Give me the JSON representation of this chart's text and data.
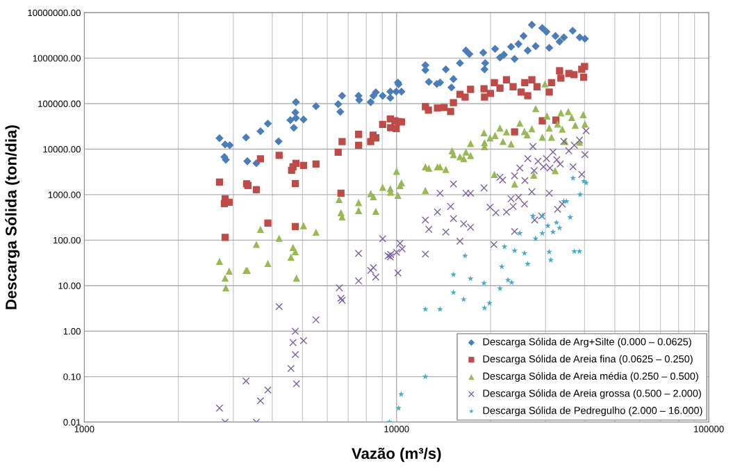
{
  "chart_data": {
    "type": "scatter",
    "xlabel": "Vazão (m³/s)",
    "ylabel": "Descarga Sólida (ton/dia)",
    "log": "xy",
    "xlim": [
      1000,
      100000
    ],
    "xticks": [
      1000,
      10000,
      100000
    ],
    "ylim": [
      0.01,
      10000000
    ],
    "yticks": [
      {
        "value": 0.01,
        "label": "0.01"
      },
      {
        "value": 0.1,
        "label": "0.10"
      },
      {
        "value": 1,
        "label": "1.00"
      },
      {
        "value": 10,
        "label": "10.00"
      },
      {
        "value": 100,
        "label": "100.00"
      },
      {
        "value": 1000,
        "label": "1000.00"
      },
      {
        "value": 10000,
        "label": "10000.00"
      },
      {
        "value": 100000,
        "label": "100000.00"
      },
      {
        "value": 1000000,
        "label": "1000000.00"
      },
      {
        "value": 10000000,
        "label": "10000000.00"
      }
    ],
    "grid": true,
    "legend": "bottom right",
    "series": [
      {
        "name": "Descarga Sólida de Arg+Silte (0.000 – 0.0625)",
        "color": "#4a7ebb",
        "marker": "diamond",
        "x": [
          2710,
          2825,
          2923,
          2810,
          2840,
          3296,
          3327,
          3557,
          3666,
          3872,
          4190,
          4571,
          4690,
          4740,
          4762,
          4762,
          5036,
          5521,
          6503,
          6605,
          6693,
          7558,
          7594,
          8263,
          8432,
          8580,
          9027,
          9550,
          9550,
          9974,
          10100,
          10150,
          10370,
          12370,
          12370,
          12690,
          13460,
          13780,
          14380,
          14990,
          15210,
          15960,
          16680,
          17110,
          18950,
          19130,
          19230,
          20680,
          21440,
          22070,
          23270,
          23880,
          24570,
          25510,
          26310,
          27120,
          27900,
          29290,
          30200,
          30830,
          32280,
          33270,
          34350,
          36650,
          38610,
          40110
        ],
        "values": [
          17380,
          12650,
          12220,
          6710,
          5840,
          17990,
          5430,
          4890,
          24700,
          36400,
          14830,
          43400,
          29500,
          64000,
          108000,
          48200,
          45000,
          87900,
          97700,
          66300,
          149000,
          149000,
          120500,
          108000,
          149000,
          177000,
          149000,
          184000,
          134000,
          184000,
          290000,
          266000,
          184000,
          701000,
          548000,
          301000,
          271000,
          290000,
          567000,
          227000,
          347000,
          778000,
          1470000,
          1230000,
          1320000,
          567000,
          778000,
          1600000,
          1030000,
          1190000,
          1780000,
          962000,
          2040000,
          3070000,
          1470000,
          5400000,
          1830000,
          4590000,
          3800000,
          1690000,
          3070000,
          2320000,
          2860000,
          4000000,
          2860000,
          2670000
        ]
      },
      {
        "name": "Descarga Sólida de Areia fina (0.0625 – 0.250)",
        "color": "#be4b48",
        "marker": "square",
        "x": [
          2710,
          2825,
          2810,
          2910,
          2825,
          3311,
          3342,
          3557,
          3666,
          3872,
          4207,
          4612,
          4660,
          4762,
          4740,
          5036,
          4740,
          5521,
          6503,
          6693,
          6637,
          7558,
          7558,
          8263,
          8410,
          8580,
          9027,
          9550,
          9570,
          9974,
          10150,
          9880,
          10370,
          12370,
          12650,
          13520,
          14200,
          14900,
          15210,
          15960,
          16580,
          17260,
          19060,
          19130,
          19980,
          20570,
          21440,
          22490,
          23620,
          25050,
          25740,
          26310,
          27120,
          28170,
          29290,
          30830,
          31350,
          32380,
          33270,
          33600,
          35620,
          37000,
          39180,
          39730,
          23880,
          40000
        ],
        "values": [
          1890,
          813,
          635,
          681,
          115,
          1730,
          1585,
          1285,
          6150,
          237,
          7330,
          3440,
          4100,
          4890,
          1750,
          4400,
          199,
          4720,
          8590,
          14600,
          1075,
          21100,
          12200,
          14600,
          20300,
          17700,
          35100,
          45800,
          29500,
          28400,
          40400,
          41900,
          39700,
          85700,
          71800,
          80200,
          82400,
          67100,
          105000,
          160000,
          139000,
          206000,
          212000,
          139000,
          168000,
          290000,
          219000,
          334000,
          235000,
          180000,
          290000,
          149000,
          334000,
          235000,
          41900,
          180000,
          290000,
          43400,
          528000,
          363000,
          462000,
          433000,
          567000,
          379000,
          23900,
          653000
        ]
      },
      {
        "name": "Descarga Sólida de Areia média (0.250 – 0.500)",
        "color": "#98b954",
        "marker": "triangle",
        "x": [
          2710,
          2825,
          2840,
          2910,
          3296,
          3327,
          3557,
          3666,
          3872,
          4207,
          4591,
          4660,
          4740,
          4780,
          5036,
          5521,
          6546,
          6637,
          6693,
          7558,
          7558,
          8263,
          8432,
          8580,
          9027,
          9550,
          9570,
          10000,
          10100,
          10260,
          10370,
          12370,
          12370,
          12690,
          13520,
          13780,
          14380,
          15060,
          15210,
          15960,
          16420,
          16680,
          17260,
          17260,
          19060,
          19130,
          19130,
          19920,
          20570,
          20680,
          21440,
          21920,
          22490,
          23270,
          23880,
          24820,
          25680,
          26190,
          27120,
          27510,
          27900,
          29290,
          29870,
          30320,
          30830,
          31350,
          32210,
          32790,
          33600,
          33940,
          34640,
          35480,
          36400,
          37350,
          38540,
          39610,
          40110
        ],
        "values": [
          34.2,
          14.7,
          8.97,
          20.9,
          21.6,
          21.6,
          80.9,
          173,
          30.8,
          110,
          42.2,
          69.0,
          55.9,
          14.7,
          208,
          150,
          783,
          402,
          325,
          670,
          447,
          1057,
          903,
          431,
          1448,
          1355,
          1136,
          3265,
          968,
          1585,
          1820,
          1240,
          4100,
          3820,
          4100,
          4100,
          3600,
          9220,
          7570,
          6790,
          6180,
          8650,
          7260,
          13300,
          23000,
          13900,
          11400,
          17700,
          2790,
          20000,
          29200,
          14800,
          23900,
          13000,
          1710,
          37200,
          24500,
          20700,
          28000,
          2690,
          77900,
          18200,
          271000,
          53600,
          29200,
          18200,
          3370,
          35600,
          62800,
          27500,
          14800,
          67100,
          50000,
          33400,
          14300,
          57500,
          35600
        ]
      },
      {
        "name": "Descarga Sólida de Areia grossa (0.500 – 2.000)",
        "color": "#7d60a0",
        "marker": "cross",
        "x": [
          2710,
          2825,
          3296,
          3557,
          3666,
          3872,
          4207,
          4591,
          4660,
          4740,
          4740,
          4780,
          5036,
          5521,
          6557,
          6637,
          6693,
          7558,
          7558,
          8263,
          8432,
          8580,
          9027,
          9550,
          9570,
          10000,
          10100,
          10260,
          10420,
          9404,
          12370,
          12370,
          12690,
          13520,
          13780,
          14380,
          14900,
          15210,
          15210,
          15960,
          16400,
          16680,
          17260,
          17260,
          19060,
          19920,
          20500,
          20800,
          21440,
          21860,
          22490,
          23270,
          23620,
          23880,
          23880,
          24570,
          24820,
          25680,
          25770,
          26310,
          27120,
          27340,
          27580,
          27690,
          28380,
          29160,
          29550,
          30200,
          30830,
          30990,
          31680,
          32590,
          32790,
          33440,
          33940,
          34350,
          35620,
          36750,
          37090,
          38540,
          39180,
          40110,
          40460
        ],
        "values": [
          0.0203,
          0.01,
          0.0802,
          0.01,
          0.0294,
          0.0507,
          3.47,
          0.151,
          0.561,
          0.993,
          0.305,
          0.0697,
          0.618,
          1.77,
          8.97,
          5.28,
          4.75,
          51.1,
          12.7,
          21.6,
          24.9,
          15.5,
          107,
          42.8,
          48.6,
          54.0,
          19.0,
          85.3,
          64.4,
          45.3,
          49.3,
          277,
          173,
          416,
          1077,
          151,
          552,
          1714,
          297,
          94.8,
          229,
          1077,
          192,
          1077,
          1403,
          532,
          80.2,
          402,
          2420,
          2100,
          416,
          813,
          552,
          155,
          2600,
          873,
          3850,
          624,
          2040,
          6180,
          1156,
          11400,
          3370,
          277,
          5430,
          340,
          4100,
          6180,
          1077,
          3850,
          8650,
          5840,
          479,
          4720,
          624,
          14800,
          9230,
          4100,
          12200,
          15800,
          2790,
          7570,
          25300
        ]
      },
      {
        "name": "Descarga Sólida de Pedregulho (2.000 – 16.000)",
        "color": "#46aac5",
        "marker": "star",
        "x": [
          9477,
          10150,
          10350,
          12370,
          12370,
          13780,
          15210,
          15210,
          16400,
          16580,
          17260,
          19060,
          19130,
          19850,
          21440,
          21730,
          22170,
          22740,
          23360,
          23880,
          24820,
          25680,
          26310,
          27340,
          27870,
          29290,
          29290,
          30520,
          30830,
          31180,
          31680,
          32520,
          33270,
          34350,
          35000,
          35990,
          36750,
          37090,
          38540,
          38720,
          39820,
          40460
        ],
        "values": [
          0.01,
          0.0203,
          0.041,
          0.1,
          3.02,
          3.02,
          17.5,
          7.08,
          4.98,
          45.3,
          14.3,
          11.3,
          3.23,
          4.13,
          8.65,
          26.1,
          72.1,
          13.3,
          11.7,
          58.7,
          141,
          51.4,
          30.0,
          340,
          108,
          141,
          340,
          206,
          55.0,
          36.6,
          151,
          243,
          185,
          713,
          713,
          318,
          2300,
          56.5,
          56.5,
          1004,
          1960,
          1810
        ]
      }
    ]
  }
}
